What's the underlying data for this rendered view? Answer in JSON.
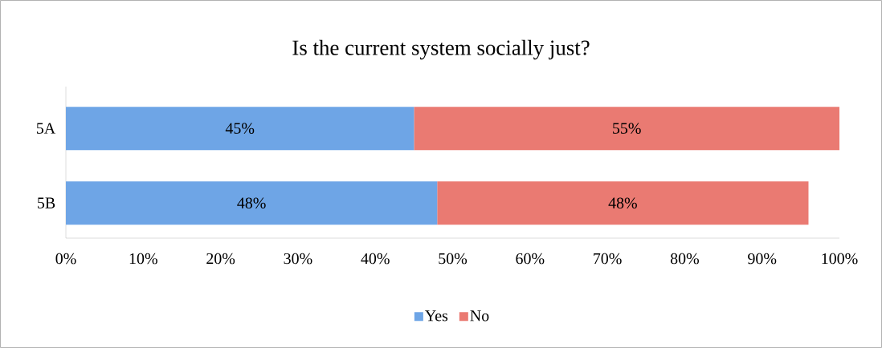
{
  "chart_data": {
    "type": "bar",
    "orientation": "horizontal",
    "stacked": true,
    "title": "Is the current system socially just?",
    "categories": [
      "5A",
      "5B"
    ],
    "series": [
      {
        "name": "Yes",
        "color": "#6ea5e6",
        "values": [
          45,
          48
        ],
        "value_labels": [
          "45%",
          "48%"
        ]
      },
      {
        "name": "No",
        "color": "#ea7a72",
        "values": [
          55,
          48
        ],
        "value_labels": [
          "55%",
          "48%"
        ]
      }
    ],
    "xlim": [
      0,
      100
    ],
    "xticks": [
      {
        "value": 0,
        "label": "0%"
      },
      {
        "value": 10,
        "label": "10%"
      },
      {
        "value": 20,
        "label": "20%"
      },
      {
        "value": 30,
        "label": "30%"
      },
      {
        "value": 40,
        "label": "40%"
      },
      {
        "value": 50,
        "label": "50%"
      },
      {
        "value": 60,
        "label": "60%"
      },
      {
        "value": 70,
        "label": "70%"
      },
      {
        "value": 80,
        "label": "80%"
      },
      {
        "value": 90,
        "label": "90%"
      },
      {
        "value": 100,
        "label": "100%"
      }
    ],
    "grid": false,
    "legend": "bottom"
  }
}
